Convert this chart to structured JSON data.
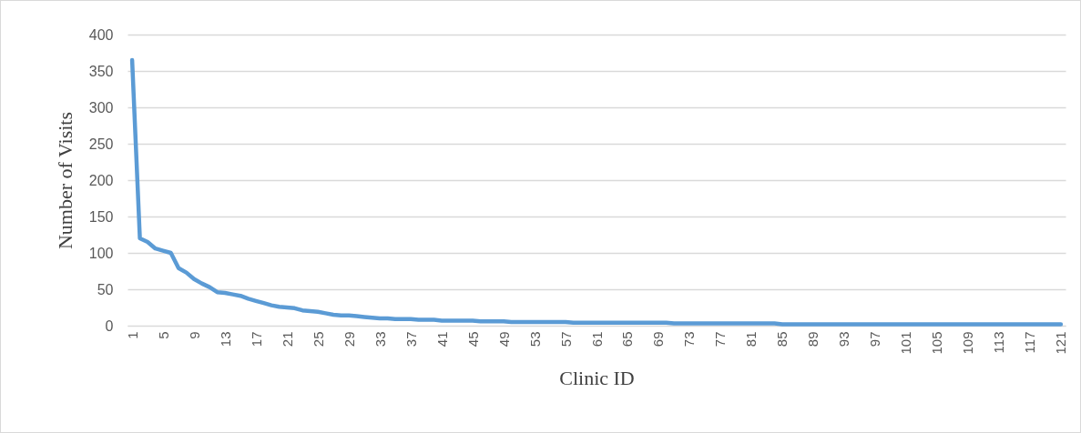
{
  "chart_data": {
    "type": "line",
    "xlabel": "Clinic ID",
    "ylabel": "Number of Visits",
    "categories": [
      "1",
      null,
      null,
      null,
      "5",
      null,
      null,
      null,
      "9",
      null,
      null,
      null,
      "13",
      null,
      null,
      null,
      "17",
      null,
      null,
      null,
      "21",
      null,
      null,
      null,
      "25",
      null,
      null,
      null,
      "29",
      null,
      null,
      null,
      "33",
      null,
      null,
      null,
      "37",
      null,
      null,
      null,
      "41",
      null,
      null,
      null,
      "45",
      null,
      null,
      null,
      "49",
      null,
      null,
      null,
      "53",
      null,
      null,
      null,
      "57",
      null,
      null,
      null,
      "61",
      null,
      null,
      null,
      "65",
      null,
      null,
      null,
      "69",
      null,
      null,
      null,
      "73",
      null,
      null,
      null,
      "77",
      null,
      null,
      null,
      "81",
      null,
      null,
      null,
      "85",
      null,
      null,
      null,
      "89",
      null,
      null,
      null,
      "93",
      null,
      null,
      null,
      "97",
      null,
      null,
      null,
      "101",
      null,
      null,
      null,
      "105",
      null,
      null,
      null,
      "109",
      null,
      null,
      null,
      "113",
      null,
      null,
      null,
      "117",
      null,
      null,
      null,
      "121"
    ],
    "series": [
      {
        "color": "#5b9bd5",
        "values": [
          365,
          120,
          115,
          106,
          103,
          100,
          79,
          73,
          64,
          58,
          53,
          46,
          45,
          43,
          41,
          37,
          34,
          31,
          28,
          26,
          25,
          24,
          21,
          20,
          19,
          17,
          15,
          14,
          14,
          13,
          12,
          11,
          10,
          10,
          9,
          9,
          9,
          8,
          8,
          8,
          7,
          7,
          7,
          7,
          7,
          6,
          6,
          6,
          6,
          5,
          5,
          5,
          5,
          5,
          5,
          5,
          5,
          4,
          4,
          4,
          4,
          4,
          4,
          4,
          4,
          4,
          4,
          4,
          4,
          4,
          3,
          3,
          3,
          3,
          3,
          3,
          3,
          3,
          3,
          3,
          3,
          3,
          3,
          3,
          2,
          2,
          2,
          2,
          2,
          2,
          2,
          2,
          2,
          2,
          2,
          2,
          2,
          2,
          2,
          2,
          2,
          2,
          2,
          2,
          2,
          2,
          2,
          2,
          2,
          2,
          2,
          2,
          2,
          2,
          2,
          2,
          2,
          2,
          2,
          2,
          2
        ]
      }
    ],
    "ylim": [
      0,
      400
    ],
    "yticks": [
      0,
      50,
      100,
      150,
      200,
      250,
      300,
      350,
      400
    ],
    "grid": "y",
    "marker": "none",
    "line_style": "solid"
  }
}
